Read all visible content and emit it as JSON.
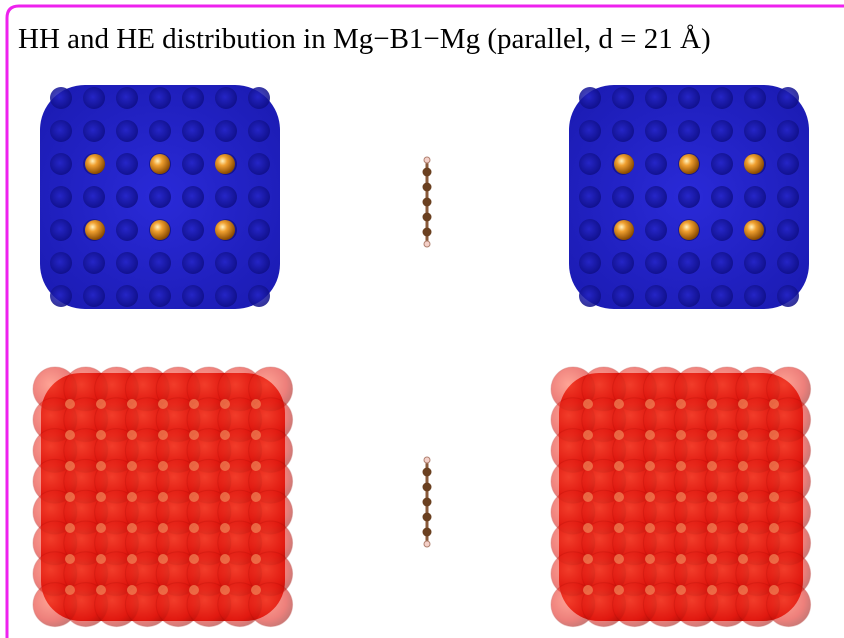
{
  "title": "HH and HE distribution in Mg−B1−Mg (parallel, d = 21 Å)"
}
